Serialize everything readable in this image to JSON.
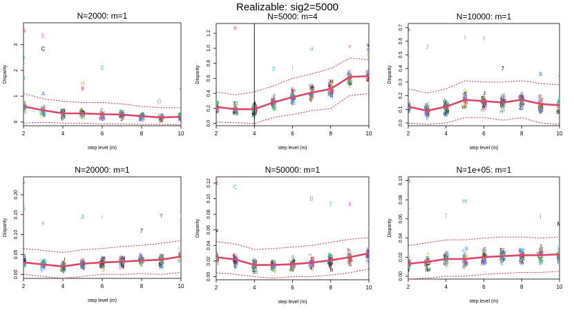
{
  "figure": {
    "title": "Realizable: sig2=5000"
  },
  "colors": {
    "mean_line": "#d9486a",
    "band_line": "#c0284a",
    "axis": "#000000",
    "symbol_palette": [
      "#000000",
      "#e0234a",
      "#2bc94e",
      "#2b6ee8",
      "#1ec6d6",
      "#d65fd8",
      "#e6b13a",
      "#9b9b9b"
    ]
  },
  "chart_data": [
    {
      "type": "scatter",
      "title": "N=2000: m=1",
      "xlabel": "step level (m)",
      "ylabel": "Disparity",
      "xlim": [
        2,
        10
      ],
      "ylim": [
        -0.15,
        3.85
      ],
      "xticks": [
        2,
        4,
        6,
        8,
        10
      ],
      "yticks": [
        0,
        1,
        2,
        3
      ],
      "ytick_labels": [
        "0",
        "1",
        "2",
        "3"
      ],
      "vline": null,
      "x": [
        2,
        3,
        4,
        5,
        6,
        7,
        8,
        9,
        10
      ],
      "mean": [
        0.6,
        0.45,
        0.33,
        0.33,
        0.3,
        0.28,
        0.22,
        0.17,
        0.2
      ],
      "upper": [
        1.1,
        0.9,
        0.8,
        0.75,
        0.75,
        0.7,
        0.6,
        0.55,
        0.55
      ],
      "lower": [
        -0.05,
        -0.02,
        -0.05,
        -0.05,
        -0.08,
        -0.08,
        -0.1,
        -0.1,
        -0.12
      ],
      "labeled_points": [
        {
          "x": 2,
          "y": 3.55,
          "label": "G"
        },
        {
          "x": 2,
          "y": 2.5,
          "label": "J"
        },
        {
          "x": 2,
          "y": 2.2,
          "label": "7"
        },
        {
          "x": 2,
          "y": 1.7,
          "label": "B"
        },
        {
          "x": 3,
          "y": 3.35,
          "label": "E"
        },
        {
          "x": 3,
          "y": 2.85,
          "label": "C"
        },
        {
          "x": 3,
          "y": 1.1,
          "label": "A"
        },
        {
          "x": 5,
          "y": 1.5,
          "label": "H"
        },
        {
          "x": 5,
          "y": 1.3,
          "label": "9"
        },
        {
          "x": 6,
          "y": 2.1,
          "label": "2"
        },
        {
          "x": 8.9,
          "y": 0.8,
          "label": "G"
        },
        {
          "x": 10,
          "y": 1.3,
          "label": "4"
        }
      ]
    },
    {
      "type": "scatter",
      "title": "N=5000: m=4",
      "xlabel": "step level (m)",
      "ylabel": "Disparity",
      "xlim": [
        2,
        10
      ],
      "ylim": [
        -0.03,
        1.33
      ],
      "xticks": [
        2,
        4,
        6,
        8,
        10
      ],
      "yticks": [
        0,
        0.2,
        0.4,
        0.6,
        0.8,
        1.0,
        1.2
      ],
      "ytick_labels": [
        "0.0",
        "0.2",
        "0.4",
        "0.6",
        "0.8",
        "1.0",
        "1.2"
      ],
      "vline": 4,
      "x": [
        2,
        3,
        4,
        5,
        6,
        7,
        8,
        9,
        10
      ],
      "mean": [
        0.22,
        0.19,
        0.19,
        0.28,
        0.35,
        0.41,
        0.46,
        0.62,
        0.63
      ],
      "upper": [
        0.42,
        0.38,
        0.42,
        0.5,
        0.6,
        0.66,
        0.73,
        0.87,
        0.85
      ],
      "lower": [
        0.02,
        0.01,
        0.0,
        0.08,
        0.12,
        0.17,
        0.2,
        0.37,
        0.4
      ],
      "labeled_points": [
        {
          "x": 3,
          "y": 1.28,
          "label": "u"
        },
        {
          "x": 5,
          "y": 0.73,
          "label": "3"
        },
        {
          "x": 6,
          "y": 0.75,
          "label": "i"
        },
        {
          "x": 7,
          "y": 1.0,
          "label": "u"
        },
        {
          "x": 9,
          "y": 1.03,
          "label": "x"
        },
        {
          "x": 10,
          "y": 1.05,
          "label": "w"
        },
        {
          "x": 10,
          "y": 0.98,
          "label": "C"
        },
        {
          "x": 10,
          "y": 0.91,
          "label": "E"
        }
      ]
    },
    {
      "type": "scatter",
      "title": "N=10000: m=1",
      "xlabel": "step level (m)",
      "ylabel": "Disparity",
      "xlim": [
        2,
        10
      ],
      "ylim": [
        -0.02,
        0.73
      ],
      "xticks": [
        2,
        4,
        6,
        8,
        10
      ],
      "yticks": [
        0,
        0.1,
        0.2,
        0.3,
        0.4,
        0.5,
        0.6,
        0.7
      ],
      "ytick_labels": [
        "0.0",
        "0.1",
        "0.2",
        "0.3",
        "0.4",
        "0.5",
        "0.6",
        "0.7"
      ],
      "vline": null,
      "x": [
        2,
        3,
        4,
        5,
        6,
        7,
        8,
        9,
        10
      ],
      "mean": [
        0.12,
        0.09,
        0.12,
        0.17,
        0.16,
        0.15,
        0.17,
        0.14,
        0.13
      ],
      "upper": [
        0.25,
        0.22,
        0.25,
        0.31,
        0.3,
        0.3,
        0.31,
        0.29,
        0.28
      ],
      "lower": [
        0.0,
        -0.01,
        0.0,
        0.04,
        0.04,
        0.02,
        0.04,
        0.0,
        -0.01
      ],
      "labeled_points": [
        {
          "x": 2,
          "y": 0.69,
          "label": "a"
        },
        {
          "x": 2,
          "y": 0.5,
          "label": "x"
        },
        {
          "x": 3,
          "y": 0.56,
          "label": "J"
        },
        {
          "x": 5,
          "y": 0.63,
          "label": "i"
        },
        {
          "x": 6,
          "y": 0.62,
          "label": "f"
        },
        {
          "x": 7,
          "y": 0.4,
          "label": "7"
        },
        {
          "x": 9,
          "y": 0.36,
          "label": "9"
        },
        {
          "x": 10,
          "y": 0.34,
          "label": "v"
        }
      ]
    },
    {
      "type": "scatter",
      "title": "N=20000: m=1",
      "xlabel": "step level (m)",
      "ylabel": "Disparity",
      "xlim": [
        2,
        10
      ],
      "ylim": [
        -0.01,
        0.245
      ],
      "xticks": [
        2,
        4,
        6,
        8,
        10
      ],
      "yticks": [
        0,
        0.05,
        0.1,
        0.15,
        0.2
      ],
      "ytick_labels": [
        "0.00",
        "0.05",
        "0.10",
        "0.15",
        "0.20"
      ],
      "vline": null,
      "x": [
        2,
        3,
        4,
        5,
        6,
        7,
        8,
        9,
        10
      ],
      "mean": [
        0.03,
        0.025,
        0.02,
        0.027,
        0.03,
        0.032,
        0.035,
        0.037,
        0.045
      ],
      "upper": [
        0.065,
        0.06,
        0.055,
        0.062,
        0.065,
        0.07,
        0.073,
        0.078,
        0.085
      ],
      "lower": [
        0.0,
        -0.005,
        -0.01,
        -0.005,
        0.0,
        0.0,
        0.002,
        0.0,
        0.005
      ],
      "labeled_points": [
        {
          "x": 2,
          "y": 0.23,
          "label": "v"
        },
        {
          "x": 2,
          "y": 0.165,
          "label": "G"
        },
        {
          "x": 3,
          "y": 0.13,
          "label": "s"
        },
        {
          "x": 5,
          "y": 0.145,
          "label": "3"
        },
        {
          "x": 6,
          "y": 0.145,
          "label": "i"
        },
        {
          "x": 8,
          "y": 0.11,
          "label": "7"
        },
        {
          "x": 9,
          "y": 0.148,
          "label": "Y"
        },
        {
          "x": 10,
          "y": 0.148,
          "label": "t"
        }
      ]
    },
    {
      "type": "scatter",
      "title": "N=50000: m=1",
      "xlabel": "step level (m)",
      "ylabel": "Disparity",
      "xlim": [
        2,
        10
      ],
      "ylim": [
        -0.004,
        0.128
      ],
      "xticks": [
        2,
        4,
        6,
        8,
        10
      ],
      "yticks": [
        0,
        0.02,
        0.04,
        0.06,
        0.08,
        0.1,
        0.12
      ],
      "ytick_labels": [
        "0.00",
        "0.02",
        "0.04",
        "0.06",
        "0.08",
        "0.10",
        "0.12"
      ],
      "vline": null,
      "x": [
        2,
        3,
        4,
        5,
        6,
        7,
        8,
        9,
        10
      ],
      "mean": [
        0.025,
        0.022,
        0.015,
        0.015,
        0.016,
        0.018,
        0.021,
        0.025,
        0.03
      ],
      "upper": [
        0.045,
        0.042,
        0.035,
        0.036,
        0.038,
        0.04,
        0.044,
        0.048,
        0.05
      ],
      "lower": [
        0.005,
        0.003,
        0.0,
        -0.002,
        0.0,
        0.0,
        0.002,
        0.005,
        0.01
      ],
      "labeled_points": [
        {
          "x": 2,
          "y": 0.12,
          "label": "R"
        },
        {
          "x": 3,
          "y": 0.115,
          "label": "C"
        },
        {
          "x": 7,
          "y": 0.1,
          "label": "B"
        },
        {
          "x": 8,
          "y": 0.093,
          "label": "7"
        },
        {
          "x": 9,
          "y": 0.093,
          "label": "4"
        },
        {
          "x": 2,
          "y": 0.06,
          "label": "w"
        },
        {
          "x": 10,
          "y": 0.063,
          "label": "j"
        }
      ]
    },
    {
      "type": "scatter",
      "title": "N=1e+05: m=1",
      "xlabel": "step level (m)",
      "ylabel": "Disparity",
      "xlim": [
        2,
        10
      ],
      "ylim": [
        -0.003,
        0.104
      ],
      "xticks": [
        2,
        4,
        6,
        8,
        10
      ],
      "yticks": [
        0,
        0.02,
        0.04,
        0.06,
        0.08,
        0.1
      ],
      "ytick_labels": [
        "0.00",
        "0.02",
        "0.04",
        "0.06",
        "0.08",
        "0.10"
      ],
      "vline": null,
      "x": [
        2,
        3,
        4,
        5,
        6,
        7,
        8,
        9,
        10
      ],
      "mean": [
        0.013,
        0.015,
        0.018,
        0.018,
        0.02,
        0.021,
        0.022,
        0.022,
        0.023
      ],
      "upper": [
        0.032,
        0.035,
        0.038,
        0.038,
        0.04,
        0.041,
        0.041,
        0.04,
        0.041
      ],
      "lower": [
        -0.003,
        -0.002,
        0.0,
        0.0,
        0.002,
        0.003,
        0.004,
        0.004,
        0.005
      ],
      "labeled_points": [
        {
          "x": 2,
          "y": 0.1,
          "label": "D"
        },
        {
          "x": 2,
          "y": 0.072,
          "label": "s"
        },
        {
          "x": 4,
          "y": 0.063,
          "label": "7"
        },
        {
          "x": 5,
          "y": 0.079,
          "label": "m"
        },
        {
          "x": 9,
          "y": 0.063,
          "label": "j"
        },
        {
          "x": 10,
          "y": 0.055,
          "label": "M"
        }
      ]
    }
  ]
}
